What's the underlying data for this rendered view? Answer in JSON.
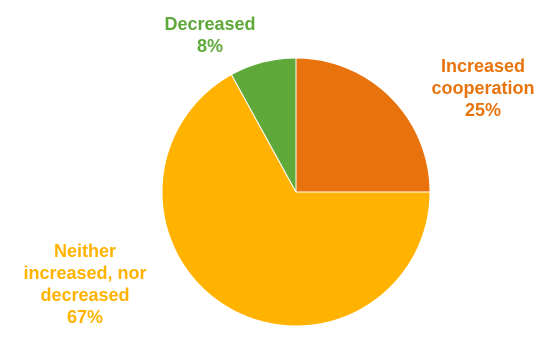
{
  "chart_data": {
    "type": "pie",
    "title": "",
    "slices": [
      {
        "label": "Increased cooperation",
        "label_lines": [
          "Increased",
          "cooperation"
        ],
        "value": 25,
        "value_label": "25%",
        "color": "#E8730C"
      },
      {
        "label": "Neither increased, nor decreased",
        "label_lines": [
          "Neither",
          "increased, nor",
          "decreased"
        ],
        "value": 67,
        "value_label": "67%",
        "color": "#FFB300"
      },
      {
        "label": "Decreased",
        "label_lines": [
          "Decreased"
        ],
        "value": 8,
        "value_label": "8%",
        "color": "#5FA83A"
      }
    ],
    "start_angle": "12 o'clock",
    "direction": "clockwise",
    "legend": "none",
    "data_labels": "outside, colored by slice"
  }
}
